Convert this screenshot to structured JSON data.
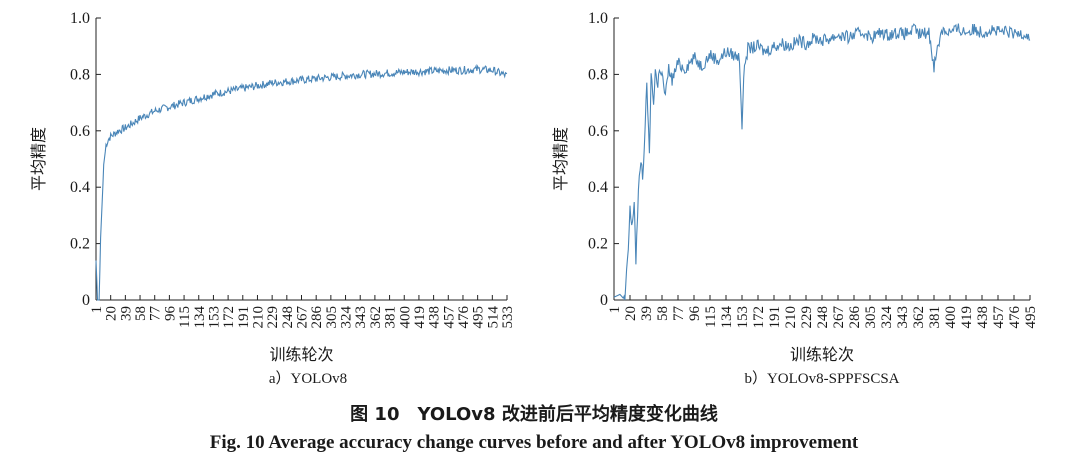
{
  "chart_data": [
    {
      "type": "line",
      "subtitle": "a）YOLOv8",
      "xlabel": "训练轮次",
      "ylabel": "平均精度",
      "ylim": [
        0,
        1.0
      ],
      "yticks": [
        "0",
        "0.2",
        "0.4",
        "0.6",
        "0.8",
        "1.0"
      ],
      "xticks": [
        "1",
        "20",
        "39",
        "58",
        "77",
        "96",
        "115",
        "134",
        "153",
        "172",
        "191",
        "210",
        "229",
        "248",
        "267",
        "286",
        "305",
        "324",
        "343",
        "362",
        "381",
        "400",
        "419",
        "438",
        "457",
        "476",
        "495",
        "514",
        "533"
      ],
      "series": [
        {
          "name": "YOLOv8",
          "color": "#4a86b8",
          "x": [
            1,
            3,
            5,
            7,
            9,
            11,
            14,
            17,
            20,
            25,
            30,
            39,
            50,
            58,
            77,
            96,
            115,
            134,
            153,
            172,
            191,
            210,
            229,
            248,
            267,
            286,
            305,
            324,
            343,
            362,
            381,
            400,
            419,
            438,
            457,
            476,
            495,
            514,
            533
          ],
          "values": [
            0.14,
            0.0,
            0.0,
            0.22,
            0.35,
            0.48,
            0.55,
            0.57,
            0.58,
            0.59,
            0.6,
            0.61,
            0.63,
            0.645,
            0.67,
            0.685,
            0.7,
            0.715,
            0.73,
            0.74,
            0.75,
            0.76,
            0.77,
            0.775,
            0.78,
            0.785,
            0.79,
            0.795,
            0.8,
            0.802,
            0.805,
            0.808,
            0.81,
            0.812,
            0.815,
            0.815,
            0.818,
            0.815,
            0.795
          ]
        }
      ]
    },
    {
      "type": "line",
      "subtitle": "b）YOLOv8-SPPFSCSA",
      "xlabel": "训练轮次",
      "ylabel": "平均精度",
      "ylim": [
        0,
        1.0
      ],
      "yticks": [
        "0",
        "0.2",
        "0.4",
        "0.6",
        "0.8",
        "1.0"
      ],
      "xticks": [
        "1",
        "20",
        "39",
        "58",
        "77",
        "96",
        "115",
        "134",
        "153",
        "172",
        "191",
        "210",
        "229",
        "248",
        "267",
        "286",
        "305",
        "324",
        "343",
        "362",
        "381",
        "400",
        "419",
        "438",
        "457",
        "476",
        "495"
      ],
      "series": [
        {
          "name": "YOLOv8-SPPFSCSA",
          "color": "#4a86b8",
          "x": [
            1,
            8,
            14,
            18,
            20,
            22,
            25,
            27,
            30,
            33,
            35,
            38,
            40,
            43,
            45,
            48,
            50,
            53,
            55,
            58,
            62,
            66,
            70,
            77,
            85,
            96,
            105,
            115,
            125,
            134,
            142,
            150,
            153,
            156,
            160,
            172,
            180,
            191,
            200,
            210,
            220,
            229,
            240,
            248,
            260,
            267,
            280,
            286,
            300,
            305,
            320,
            324,
            340,
            343,
            360,
            362,
            375,
            381,
            390,
            400,
            410,
            419,
            430,
            438,
            450,
            457,
            470,
            476,
            485,
            495
          ],
          "values": [
            0.01,
            0.02,
            0.0,
            0.18,
            0.33,
            0.25,
            0.35,
            0.14,
            0.38,
            0.5,
            0.44,
            0.6,
            0.78,
            0.5,
            0.8,
            0.7,
            0.82,
            0.75,
            0.83,
            0.8,
            0.72,
            0.82,
            0.78,
            0.84,
            0.82,
            0.86,
            0.83,
            0.87,
            0.85,
            0.88,
            0.87,
            0.86,
            0.62,
            0.84,
            0.89,
            0.9,
            0.88,
            0.9,
            0.91,
            0.9,
            0.92,
            0.91,
            0.93,
            0.92,
            0.93,
            0.94,
            0.93,
            0.94,
            0.95,
            0.93,
            0.95,
            0.94,
            0.95,
            0.94,
            0.96,
            0.94,
            0.95,
            0.83,
            0.96,
            0.95,
            0.96,
            0.95,
            0.96,
            0.95,
            0.96,
            0.95,
            0.95,
            0.94,
            0.95,
            0.935
          ]
        }
      ]
    }
  ],
  "caption": {
    "cn": "图 10　YOLOv8 改进前后平均精度变化曲线",
    "en": "Fig.  10    Average accuracy change curves before and after YOLOv8 improvement"
  }
}
